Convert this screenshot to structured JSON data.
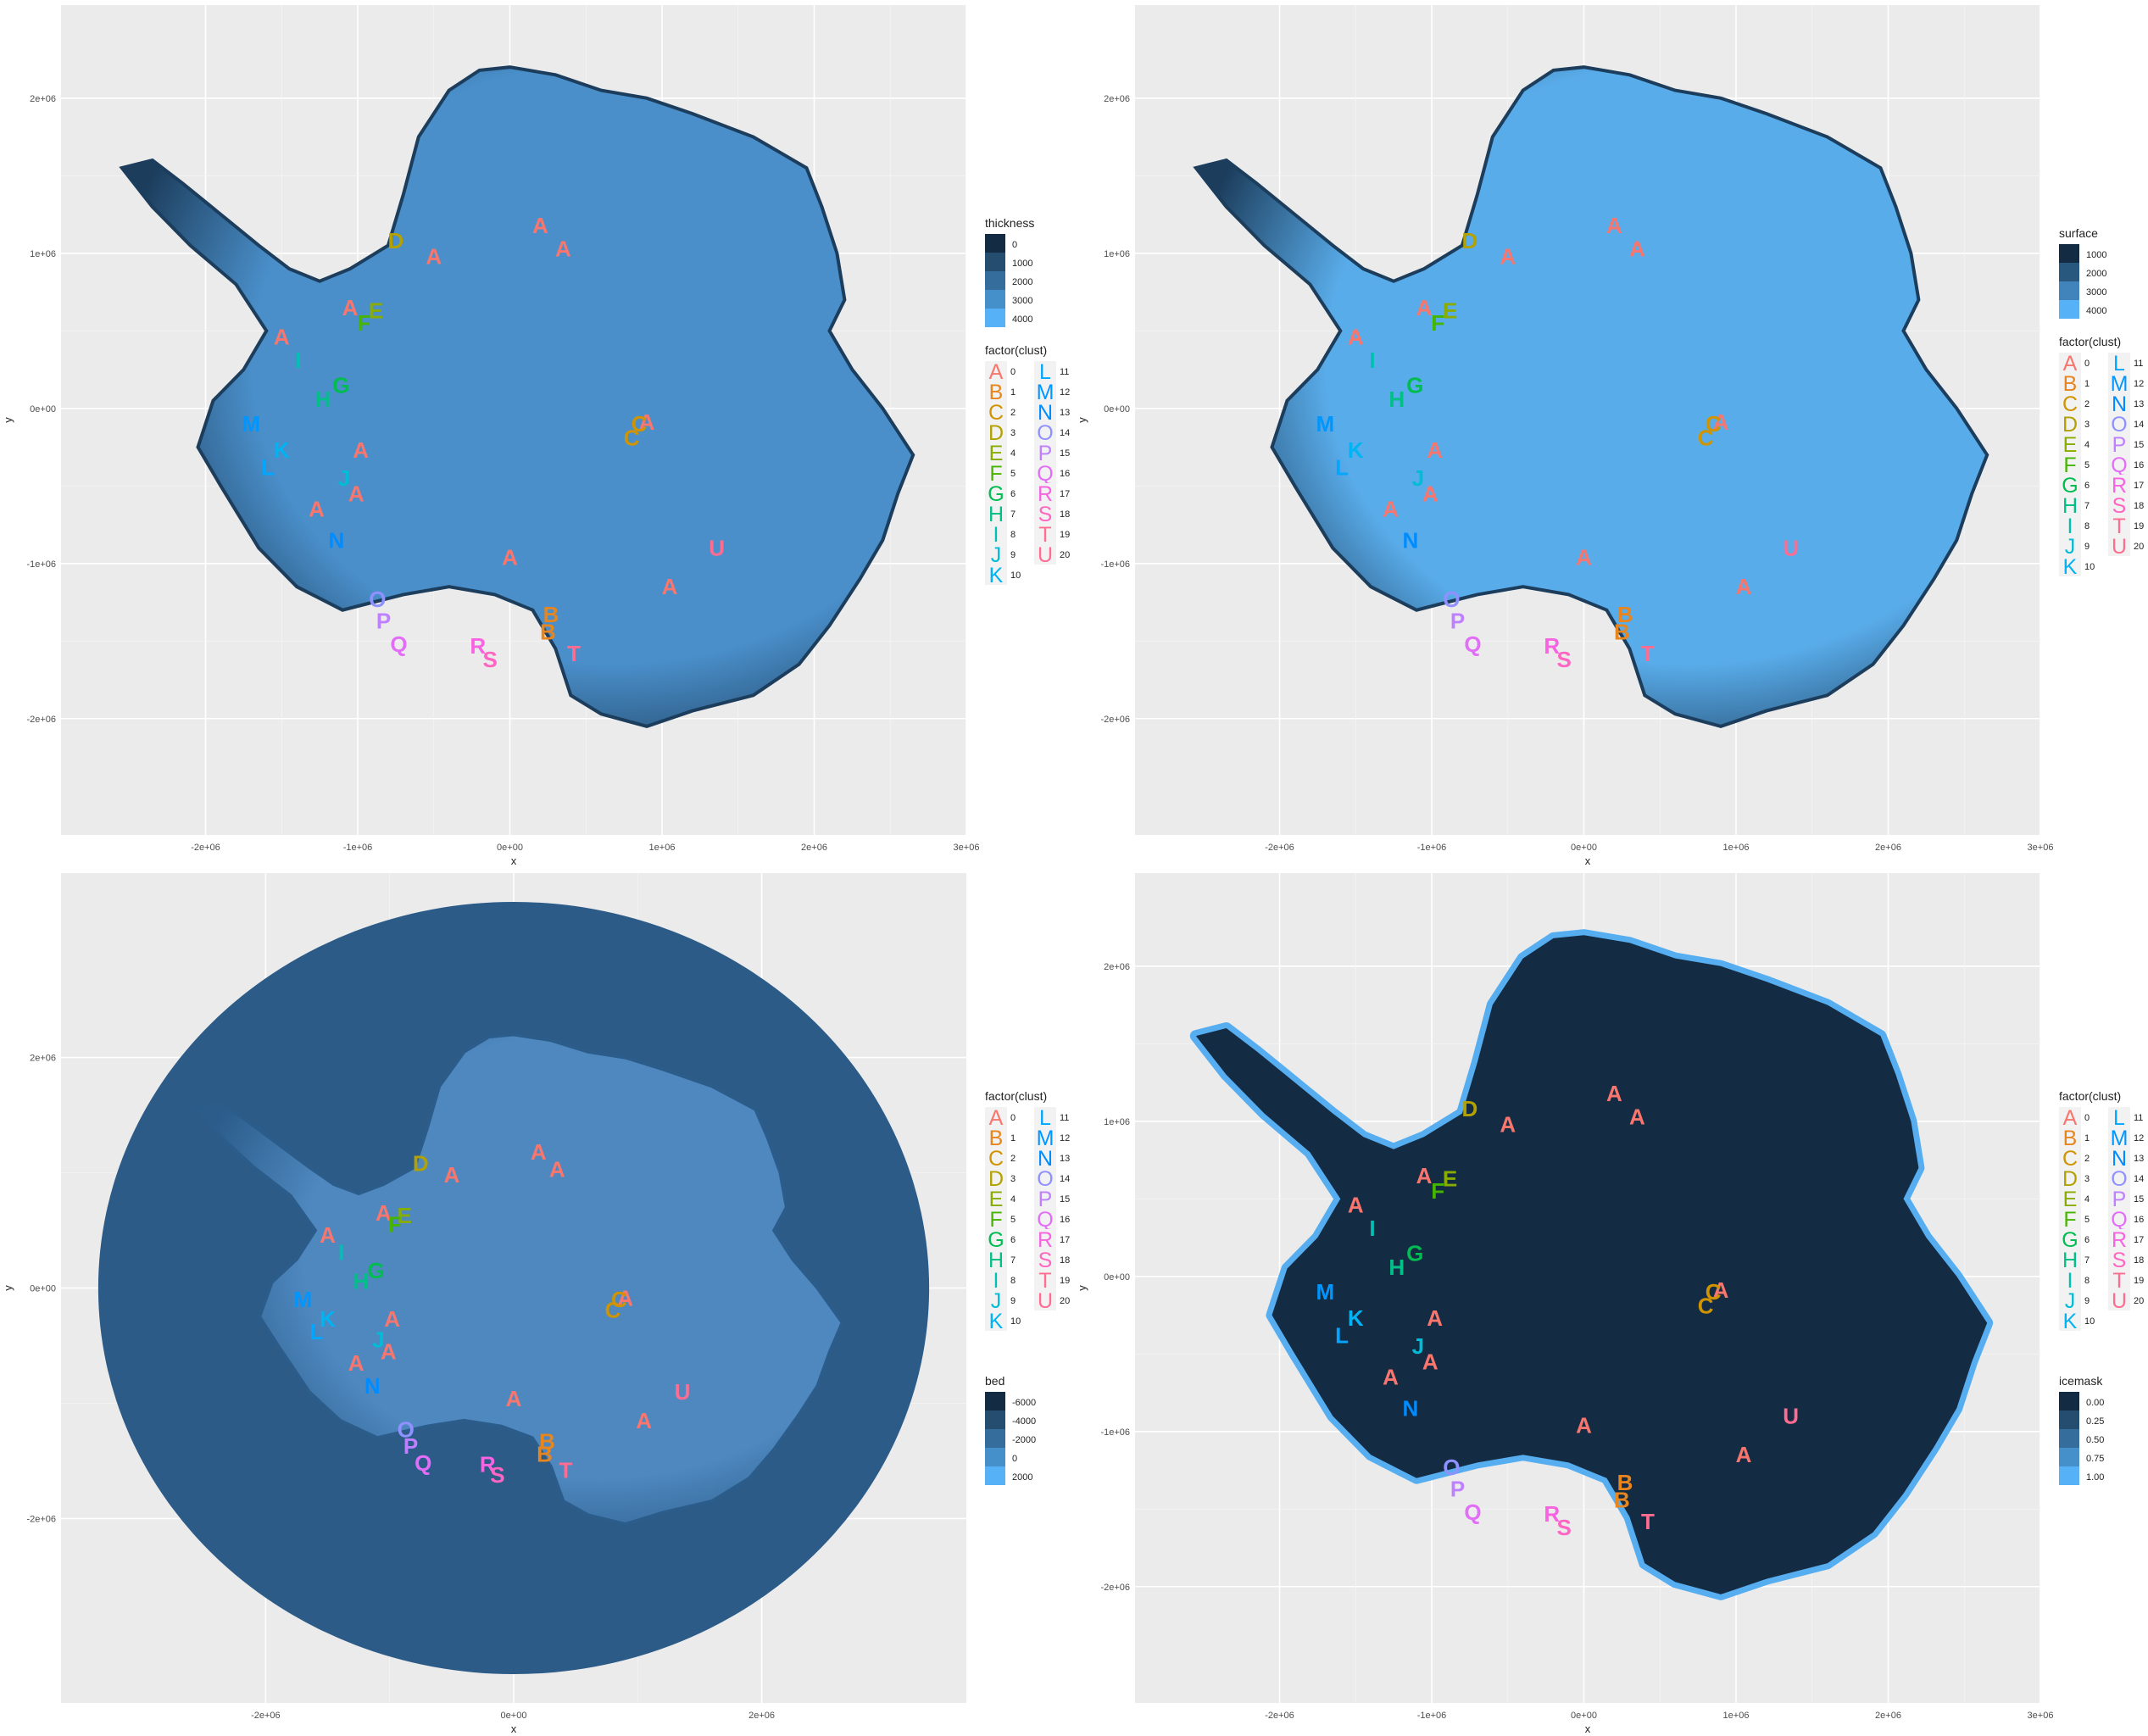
{
  "letters": [
    "A",
    "B",
    "C",
    "D",
    "E",
    "F",
    "G",
    "H",
    "I",
    "J",
    "K",
    "L",
    "M",
    "N",
    "O",
    "P",
    "Q",
    "R",
    "S",
    "T",
    "U"
  ],
  "cluster_colors": [
    "#F8766D",
    "#E7851E",
    "#D09400",
    "#B2A100",
    "#89AC00",
    "#45B500",
    "#00BC51",
    "#00C087",
    "#00C0B2",
    "#00BCD6",
    "#00B3F2",
    "#00A6FF",
    "#0096FF",
    "#008CFF",
    "#8F91FF",
    "#BF80FF",
    "#E26EF7",
    "#F763E0",
    "#FF65C2",
    "#FF6C91",
    "#FF6C91"
  ],
  "cluster_legend": {
    "title": "factor(clust)",
    "entries": [
      {
        "key": "A",
        "label": "0"
      },
      {
        "key": "B",
        "label": "1"
      },
      {
        "key": "C",
        "label": "2"
      },
      {
        "key": "D",
        "label": "3"
      },
      {
        "key": "E",
        "label": "4"
      },
      {
        "key": "F",
        "label": "5"
      },
      {
        "key": "G",
        "label": "6"
      },
      {
        "key": "H",
        "label": "7"
      },
      {
        "key": "I",
        "label": "8"
      },
      {
        "key": "J",
        "label": "9"
      },
      {
        "key": "K",
        "label": "10"
      },
      {
        "key": "L",
        "label": "11"
      },
      {
        "key": "M",
        "label": "12"
      },
      {
        "key": "N",
        "label": "13"
      },
      {
        "key": "O",
        "label": "14"
      },
      {
        "key": "P",
        "label": "15"
      },
      {
        "key": "Q",
        "label": "16"
      },
      {
        "key": "R",
        "label": "17"
      },
      {
        "key": "S",
        "label": "18"
      },
      {
        "key": "T",
        "label": "19"
      },
      {
        "key": "U",
        "label": "20"
      }
    ]
  },
  "points": [
    {
      "l": "A",
      "x": 200000,
      "y": 1180000
    },
    {
      "l": "A",
      "x": 350000,
      "y": 1030000
    },
    {
      "l": "A",
      "x": -500000,
      "y": 980000
    },
    {
      "l": "A",
      "x": -1050000,
      "y": 650000
    },
    {
      "l": "A",
      "x": -1500000,
      "y": 460000
    },
    {
      "l": "A",
      "x": -980000,
      "y": -270000
    },
    {
      "l": "A",
      "x": -1010000,
      "y": -550000
    },
    {
      "l": "A",
      "x": -1270000,
      "y": -650000
    },
    {
      "l": "A",
      "x": 0,
      "y": -960000
    },
    {
      "l": "A",
      "x": 1050000,
      "y": -1150000
    },
    {
      "l": "A",
      "x": 900000,
      "y": -90000
    },
    {
      "l": "B",
      "x": 270000,
      "y": -1330000
    },
    {
      "l": "B",
      "x": 250000,
      "y": -1440000
    },
    {
      "l": "C",
      "x": 850000,
      "y": -100000
    },
    {
      "l": "C",
      "x": 800000,
      "y": -190000
    },
    {
      "l": "D",
      "x": -750000,
      "y": 1080000
    },
    {
      "l": "E",
      "x": -880000,
      "y": 630000
    },
    {
      "l": "F",
      "x": -960000,
      "y": 550000
    },
    {
      "l": "G",
      "x": -1110000,
      "y": 150000
    },
    {
      "l": "H",
      "x": -1230000,
      "y": 60000
    },
    {
      "l": "I",
      "x": -1390000,
      "y": 310000
    },
    {
      "l": "J",
      "x": -1090000,
      "y": -450000
    },
    {
      "l": "K",
      "x": -1500000,
      "y": -270000
    },
    {
      "l": "L",
      "x": -1590000,
      "y": -380000
    },
    {
      "l": "M",
      "x": -1700000,
      "y": -100000
    },
    {
      "l": "N",
      "x": -1140000,
      "y": -850000
    },
    {
      "l": "O",
      "x": -870000,
      "y": -1230000
    },
    {
      "l": "P",
      "x": -830000,
      "y": -1370000
    },
    {
      "l": "Q",
      "x": -730000,
      "y": -1520000
    },
    {
      "l": "R",
      "x": -210000,
      "y": -1530000
    },
    {
      "l": "S",
      "x": -130000,
      "y": -1620000
    },
    {
      "l": "T",
      "x": 420000,
      "y": -1580000
    },
    {
      "l": "U",
      "x": 1360000,
      "y": -900000
    }
  ],
  "panels": [
    {
      "id": "thickness",
      "xlabel": "x",
      "ylabel": "y",
      "xticks": [
        "-2e+06",
        "-1e+06",
        "0e+00",
        "1e+06",
        "2e+06",
        "3e+06"
      ],
      "xtick_vals": [
        -2000000,
        -1000000,
        0,
        1000000,
        2000000,
        3000000
      ],
      "yticks": [
        "-2e+06",
        "-1e+06",
        "0e+00",
        "1e+06",
        "2e+06"
      ],
      "ytick_vals": [
        -2000000,
        -1000000,
        0,
        1000000,
        2000000
      ],
      "xlim": [
        -2950000,
        3000000
      ],
      "ylim": [
        -2750000,
        2600000
      ],
      "legend": {
        "title": "thickness",
        "labels": [
          "0",
          "1000",
          "2000",
          "3000",
          "4000"
        ]
      },
      "interior": "#4a8fca",
      "edge": "#1c3d5c",
      "ocean": false
    },
    {
      "id": "surface",
      "xlabel": "x",
      "ylabel": "y",
      "xticks": [
        "-2e+06",
        "-1e+06",
        "0e+00",
        "1e+06",
        "2e+06",
        "3e+06"
      ],
      "xtick_vals": [
        -2000000,
        -1000000,
        0,
        1000000,
        2000000,
        3000000
      ],
      "yticks": [
        "-2e+06",
        "-1e+06",
        "0e+00",
        "1e+06",
        "2e+06"
      ],
      "ytick_vals": [
        -2000000,
        -1000000,
        0,
        1000000,
        2000000
      ],
      "xlim": [
        -2950000,
        3000000
      ],
      "ylim": [
        -2750000,
        2600000
      ],
      "legend": {
        "title": "surface",
        "labels": [
          "1000",
          "2000",
          "3000",
          "4000"
        ]
      },
      "interior": "#59acea",
      "edge": "#1c3d5c",
      "ocean": false
    },
    {
      "id": "bed",
      "xlabel": "x",
      "ylabel": "y",
      "xticks": [
        "-2e+06",
        "0e+00",
        "2e+06"
      ],
      "xtick_vals": [
        -2000000,
        0,
        2000000
      ],
      "yticks": [
        "-2e+06",
        "0e+00",
        "2e+06"
      ],
      "ytick_vals": [
        -2000000,
        0,
        2000000
      ],
      "xlim": [
        -3650000,
        3650000
      ],
      "ylim": [
        -3600000,
        3600000
      ],
      "legend": {
        "title": "bed",
        "labels": [
          "-6000",
          "-4000",
          "-2000",
          "0",
          "2000"
        ]
      },
      "interior": "#4e88bf",
      "edge": "#2b5c8a",
      "ocean": true
    },
    {
      "id": "icemask",
      "xlabel": "x",
      "ylabel": "y",
      "xticks": [
        "-2e+06",
        "-1e+06",
        "0e+00",
        "1e+06",
        "2e+06",
        "3e+06"
      ],
      "xtick_vals": [
        -2000000,
        -1000000,
        0,
        1000000,
        2000000,
        3000000
      ],
      "yticks": [
        "-2e+06",
        "-1e+06",
        "0e+00",
        "1e+06",
        "2e+06"
      ],
      "ytick_vals": [
        -2000000,
        -1000000,
        0,
        1000000,
        2000000
      ],
      "xlim": [
        -2950000,
        3000000
      ],
      "ylim": [
        -2750000,
        2600000
      ],
      "legend": {
        "title": "icemask",
        "labels": [
          "0.00",
          "0.25",
          "0.50",
          "0.75",
          "1.00"
        ]
      },
      "interior": "#142b44",
      "edge": "#56aef0",
      "ocean": false
    }
  ]
}
